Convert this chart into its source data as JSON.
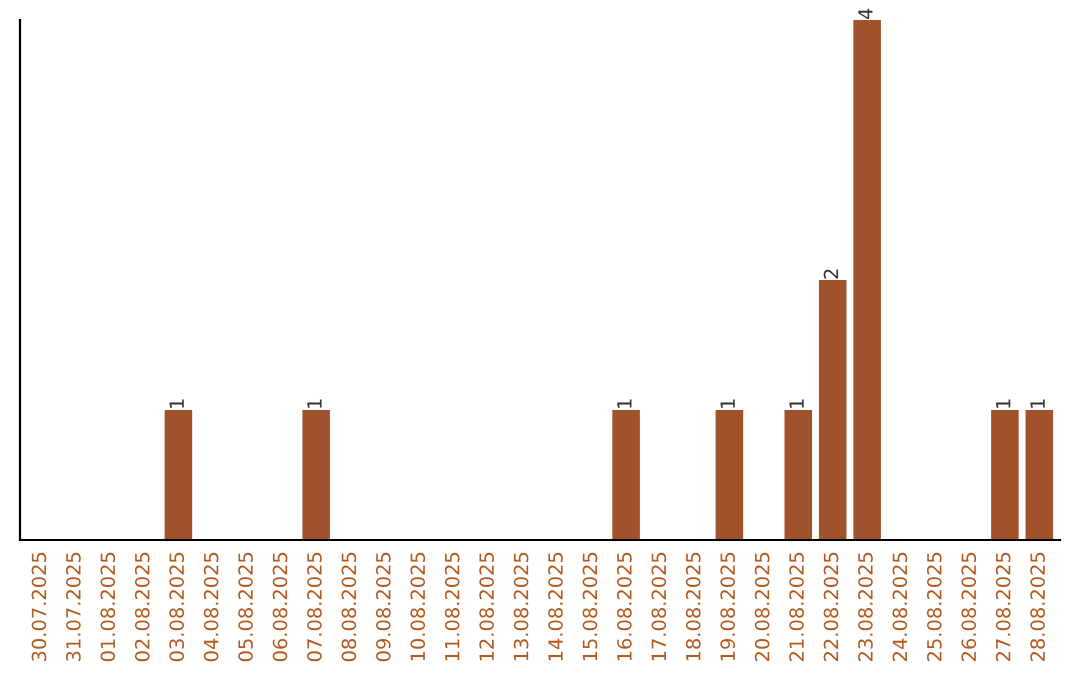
{
  "chart_data": {
    "type": "bar",
    "categories": [
      "30.07.2025",
      "31.07.2025",
      "01.08.2025",
      "02.08.2025",
      "03.08.2025",
      "04.08.2025",
      "05.08.2025",
      "06.08.2025",
      "07.08.2025",
      "08.08.2025",
      "09.08.2025",
      "10.08.2025",
      "11.08.2025",
      "12.08.2025",
      "13.08.2025",
      "14.08.2025",
      "15.08.2025",
      "16.08.2025",
      "17.08.2025",
      "18.08.2025",
      "19.08.2025",
      "20.08.2025",
      "21.08.2025",
      "22.08.2025",
      "23.08.2025",
      "24.08.2025",
      "25.08.2025",
      "26.08.2025",
      "27.08.2025",
      "28.08.2025"
    ],
    "values": [
      0,
      0,
      0,
      0,
      1,
      0,
      0,
      0,
      1,
      0,
      0,
      0,
      0,
      0,
      0,
      0,
      0,
      1,
      0,
      0,
      1,
      0,
      1,
      2,
      4,
      0,
      0,
      0,
      1,
      1
    ],
    "value_labels": [
      null,
      null,
      null,
      null,
      "1",
      null,
      null,
      null,
      "1",
      null,
      null,
      null,
      null,
      null,
      null,
      null,
      null,
      "1",
      null,
      null,
      "1",
      null,
      "1",
      "2",
      "4",
      null,
      null,
      null,
      "1",
      "1"
    ],
    "color": "#a0522d",
    "grid": false,
    "legend": false
  }
}
